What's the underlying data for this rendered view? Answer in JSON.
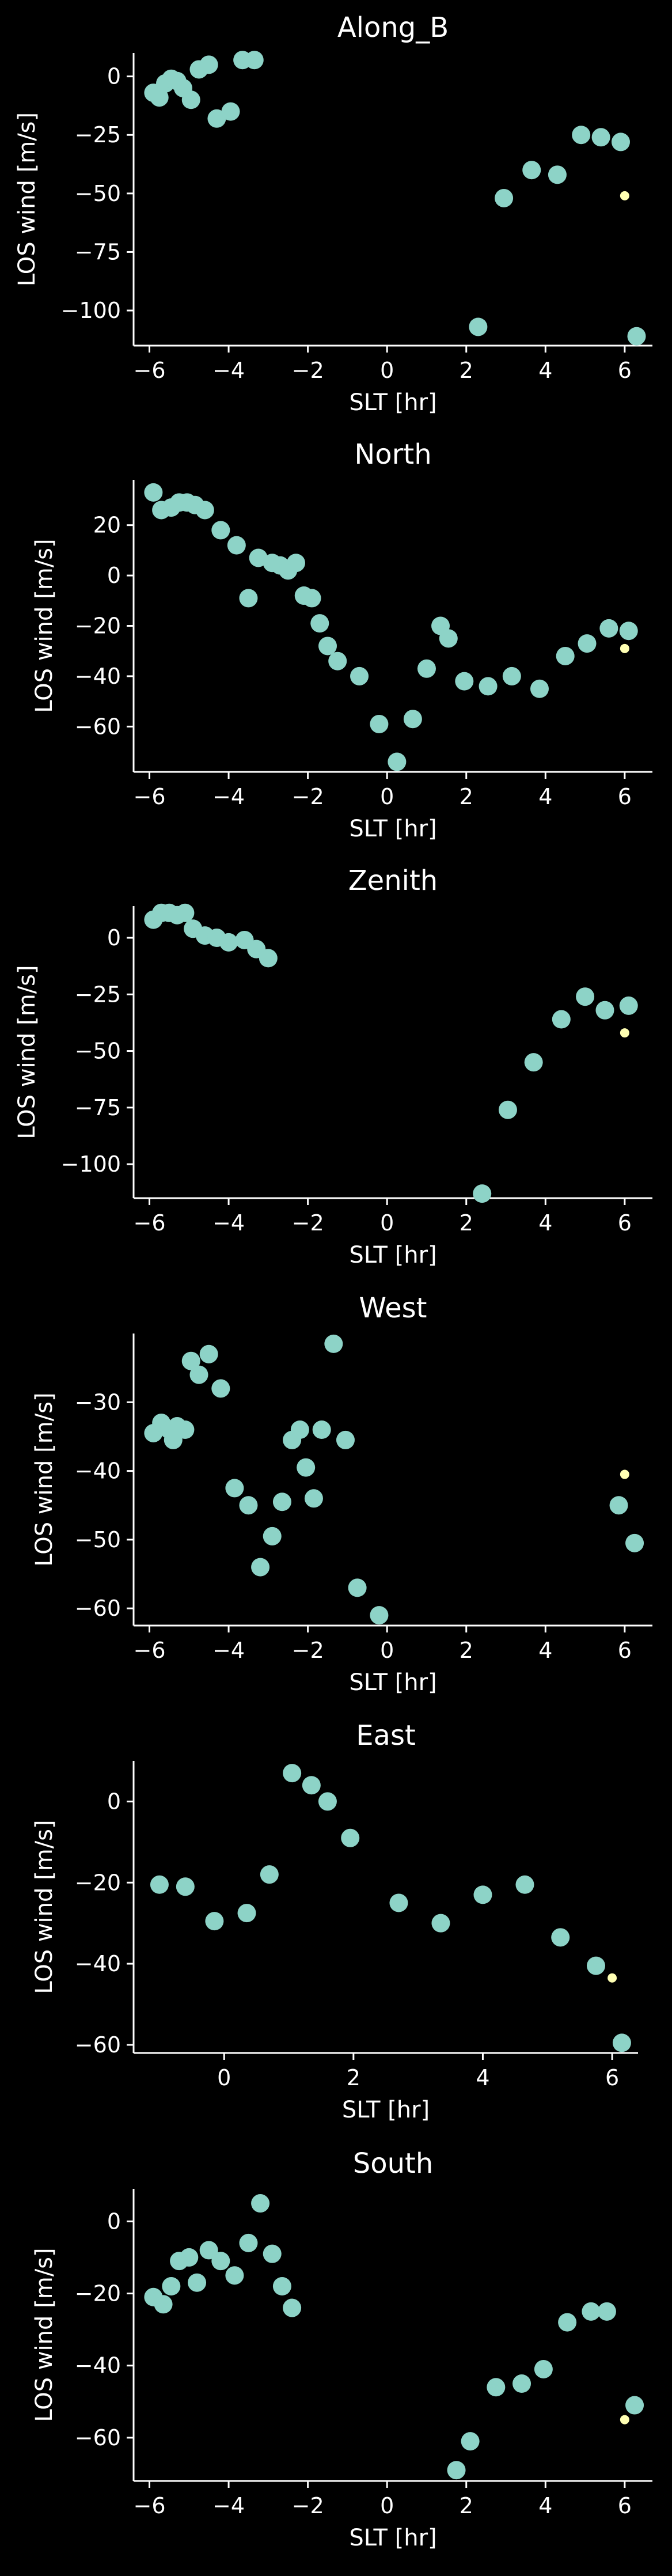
{
  "colors": {
    "background": "#000000",
    "foreground": "#ffffff",
    "points": "#8dd3c7",
    "highlight": "#ffffb3"
  },
  "chart_data": [
    {
      "type": "scatter",
      "title": "Along_B",
      "xlabel": "SLT [hr]",
      "ylabel": "LOS wind [m/s]",
      "xlim": [
        -6.4,
        6.7
      ],
      "ylim": [
        -115,
        10
      ],
      "xticks": [
        -6,
        -4,
        -2,
        0,
        2,
        4,
        6
      ],
      "yticks": [
        0,
        -25,
        -50,
        -75,
        -100
      ],
      "grid": false,
      "series": [
        {
          "x": [
            -5.9,
            -5.75,
            -5.6,
            -5.45,
            -5.3,
            -5.15,
            -4.95,
            -4.75,
            -4.5,
            -4.3,
            -3.95,
            -3.65,
            -3.35,
            2.3,
            2.95,
            3.65,
            4.3,
            4.9,
            5.4,
            5.9,
            6.3
          ],
          "y": [
            -7,
            -9,
            -3,
            -1,
            -2,
            -5,
            -10,
            3,
            5,
            -18,
            -15,
            7,
            7,
            -107,
            -52,
            -40,
            -42,
            -25,
            -26,
            -28,
            -111
          ]
        },
        {
          "highlight": true,
          "x": [
            6.0
          ],
          "y": [
            -51
          ]
        }
      ]
    },
    {
      "type": "scatter",
      "title": "North",
      "xlabel": "SLT [hr]",
      "ylabel": "LOS wind [m/s]",
      "xlim": [
        -6.4,
        6.7
      ],
      "ylim": [
        -78,
        38
      ],
      "xticks": [
        -6,
        -4,
        -2,
        0,
        2,
        4,
        6
      ],
      "yticks": [
        20,
        0,
        -20,
        -40,
        -60
      ],
      "grid": false,
      "series": [
        {
          "x": [
            -5.9,
            -5.7,
            -5.45,
            -5.25,
            -5.05,
            -4.85,
            -4.6,
            -4.2,
            -3.8,
            -3.5,
            -3.25,
            -2.9,
            -2.7,
            -2.5,
            -2.3,
            -2.1,
            -1.9,
            -1.7,
            -1.5,
            -1.25,
            -0.7,
            -0.2,
            0.25,
            0.65,
            1.0,
            1.35,
            1.55,
            1.95,
            2.55,
            3.15,
            3.85,
            4.5,
            5.05,
            5.6,
            6.1
          ],
          "y": [
            33,
            26,
            27,
            29,
            29,
            28,
            26,
            18,
            12,
            -9,
            7,
            5,
            4,
            2,
            5,
            -8,
            -9,
            -19,
            -28,
            -34,
            -40,
            -59,
            -74,
            -57,
            -37,
            -20,
            -25,
            -42,
            -44,
            -40,
            -45,
            -32,
            -27,
            -21,
            -22
          ]
        },
        {
          "highlight": true,
          "x": [
            6.0
          ],
          "y": [
            -29
          ]
        }
      ]
    },
    {
      "type": "scatter",
      "title": "Zenith",
      "xlabel": "SLT [hr]",
      "ylabel": "LOS wind [m/s]",
      "xlim": [
        -6.4,
        6.7
      ],
      "ylim": [
        -115,
        14
      ],
      "xticks": [
        -6,
        -4,
        -2,
        0,
        2,
        4,
        6
      ],
      "yticks": [
        0,
        -25,
        -50,
        -75,
        -100
      ],
      "grid": false,
      "series": [
        {
          "x": [
            -5.9,
            -5.7,
            -5.5,
            -5.3,
            -5.1,
            -4.9,
            -4.6,
            -4.3,
            -4.0,
            -3.6,
            -3.3,
            -3.0,
            2.4,
            3.05,
            3.7,
            4.4,
            5.0,
            5.5,
            6.1
          ],
          "y": [
            8,
            11,
            11,
            10,
            11,
            4,
            1,
            0,
            -2,
            -1,
            -5,
            -9,
            -113,
            -76,
            -55,
            -36,
            -26,
            -32,
            -30
          ]
        },
        {
          "highlight": true,
          "x": [
            6.0
          ],
          "y": [
            -42
          ]
        }
      ]
    },
    {
      "type": "scatter",
      "title": "West",
      "xlabel": "SLT [hr]",
      "ylabel": "LOS wind [m/s]",
      "xlim": [
        -6.4,
        6.7
      ],
      "ylim": [
        -62.5,
        -20
      ],
      "xticks": [
        -6,
        -4,
        -2,
        0,
        2,
        4,
        6
      ],
      "yticks": [
        -30,
        -40,
        -50,
        -60
      ],
      "grid": false,
      "series": [
        {
          "x": [
            -5.9,
            -5.7,
            -5.5,
            -5.3,
            -5.4,
            -5.1,
            -4.95,
            -4.75,
            -4.5,
            -4.2,
            -3.85,
            -3.5,
            -3.2,
            -2.9,
            -2.65,
            -2.4,
            -2.2,
            -2.05,
            -1.85,
            -1.65,
            -1.35,
            -1.05,
            -0.75,
            -0.2,
            5.85,
            6.25
          ],
          "y": [
            -34.5,
            -33,
            -34,
            -33.5,
            -35.5,
            -34,
            -24,
            -26,
            -23,
            -28,
            -42.5,
            -45,
            -54,
            -49.5,
            -44.5,
            -35.5,
            -34,
            -39.5,
            -44,
            -34,
            -21.5,
            -35.5,
            -57,
            -61,
            -45,
            -50.5
          ]
        },
        {
          "highlight": true,
          "x": [
            6.0
          ],
          "y": [
            -40.5
          ]
        }
      ]
    },
    {
      "type": "scatter",
      "title": "East",
      "xlabel": "SLT [hr]",
      "ylabel": "LOS wind [m/s]",
      "xlim": [
        -1.4,
        6.4
      ],
      "ylim": [
        -62,
        10
      ],
      "xticks": [
        0,
        2,
        4,
        6
      ],
      "yticks": [
        0,
        -20,
        -40,
        -60
      ],
      "grid": false,
      "series": [
        {
          "x": [
            -1.0,
            -0.6,
            -0.15,
            0.35,
            0.7,
            1.05,
            1.35,
            1.6,
            1.95,
            2.7,
            3.35,
            4.0,
            4.65,
            5.2,
            5.75,
            6.15
          ],
          "y": [
            -20.5,
            -21,
            -29.5,
            -27.5,
            -18,
            7,
            4,
            0,
            -9,
            -25,
            -30,
            -23,
            -20.5,
            -33.5,
            -40.5,
            -59.5
          ]
        },
        {
          "highlight": true,
          "x": [
            6.0
          ],
          "y": [
            -43.5
          ]
        }
      ]
    },
    {
      "type": "scatter",
      "title": "South",
      "xlabel": "SLT [hr]",
      "ylabel": "LOS wind [m/s]",
      "xlim": [
        -6.4,
        6.7
      ],
      "ylim": [
        -72,
        9
      ],
      "xticks": [
        -6,
        -4,
        -2,
        0,
        2,
        4,
        6
      ],
      "yticks": [
        0,
        -20,
        -40,
        -60
      ],
      "grid": false,
      "series": [
        {
          "x": [
            -5.9,
            -5.65,
            -5.45,
            -5.25,
            -5.0,
            -4.8,
            -4.5,
            -4.2,
            -3.85,
            -3.5,
            -3.2,
            -2.9,
            -2.65,
            -2.4,
            1.75,
            2.1,
            2.75,
            3.4,
            3.95,
            4.55,
            5.15,
            5.55,
            6.25
          ],
          "y": [
            -21,
            -23,
            -18,
            -11,
            -10,
            -17,
            -8,
            -11,
            -15,
            -6,
            5,
            -9,
            -18,
            -24,
            -69,
            -61,
            -46,
            -45,
            -41,
            -28,
            -25,
            -25,
            -51
          ]
        },
        {
          "highlight": true,
          "x": [
            6.0
          ],
          "y": [
            -55
          ]
        }
      ]
    }
  ]
}
